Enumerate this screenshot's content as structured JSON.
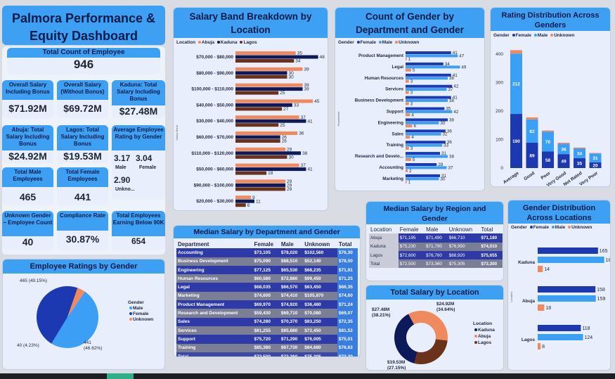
{
  "title": "Palmora Performance & Equity Dashboard",
  "kpis": {
    "total_count": {
      "label": "Total Count of Employee",
      "value": "946"
    },
    "salary_bonus": {
      "label": "Overall Salary Including Bonus",
      "value": "$71.92M"
    },
    "salary_no_bonus": {
      "label": "Overall Salary (Without Bonus)",
      "value": "$69.72M"
    },
    "kaduna_total": {
      "label": "Kaduna: Total Salary Including Bonus",
      "value": "$27.48M"
    },
    "abuja_total": {
      "label": "Abuja: Total Salary Including Bonus",
      "value": "$24.92M"
    },
    "lagos_total": {
      "label": "Lagos: Total Salary Including Bonus",
      "value": "$19.53M"
    },
    "avg_rating": {
      "label": "Average Employee Rating by Gender",
      "male_value": "3.17",
      "female_value": "3.04",
      "male_label": "Male",
      "female_label": "Female",
      "unknown_value": "2.90",
      "unknown_label": "Unkno..."
    },
    "male_emp": {
      "label": "Total Male Employees",
      "value": "465"
    },
    "female_emp": {
      "label": "Total Female Employees",
      "value": "441"
    },
    "unknown_emp": {
      "label": "Unknown Gender – Employee Count",
      "value": "40"
    },
    "compliance": {
      "label": "Compliance Rate",
      "value": "30.87%"
    },
    "below90": {
      "label": "Total Employees Earning Below 90K",
      "value": "654"
    }
  },
  "colors": {
    "abuja": "#ef8a5e",
    "kaduna": "#0d1a5a",
    "lagos": "#6a3218",
    "female": "#1c39b2",
    "male": "#3a9ff5",
    "unknown": "#ef8a5e"
  },
  "salary_band": {
    "title": "Salary Band Breakdown by Location",
    "legend_title": "Location",
    "legend": [
      "Abuja",
      "Kaduna",
      "Lagos"
    ],
    "axis_label": "Salary Band"
  },
  "gender_dept": {
    "title": "Count of Gender by Department and Gender",
    "legend_title": "Gender",
    "legend": [
      "Female",
      "Male",
      "Unknown"
    ],
    "axis_label": "Department"
  },
  "rating_dist": {
    "title": "Rating Distribution Across Genders",
    "legend_title": "Gender",
    "legend": [
      "Female",
      "Male",
      "Unknown"
    ]
  },
  "ratings_gender": {
    "title": "Employee Ratings by Gender",
    "legend_title": "Gender",
    "legend": [
      "Male",
      "Female",
      "Unknown"
    ],
    "labels": [
      "465 (49.15%)",
      "441 (46.62%)",
      "40 (4.23%)"
    ]
  },
  "median_dept": {
    "title": "Median Salary by Department and Gender",
    "headers": [
      "Department",
      "Female",
      "Male",
      "Unknown",
      "Total"
    ],
    "rows": [
      [
        "Accounting",
        "$73,105",
        "$78,020",
        "$102,560",
        "$76,30"
      ],
      [
        "Business Development",
        "$75,090",
        "$88,510",
        "$52,140",
        "$78,50"
      ],
      [
        "Engineering",
        "$77,125",
        "$65,530",
        "$68,235",
        "$71,91"
      ],
      [
        "Human Resources",
        "$60,580",
        "$72,880",
        "$99,450",
        "$71,25"
      ],
      [
        "Legal",
        "$68,035",
        "$66,570",
        "$63,450",
        "$66,35"
      ],
      [
        "Marketing",
        "$74,600",
        "$74,410",
        "$105,870",
        "$74,60"
      ],
      [
        "Product Management",
        "$69,970",
        "$74,920",
        "$36,480",
        "$71,24"
      ],
      [
        "Research and Development",
        "$59,430",
        "$69,710",
        "$70,080",
        "$69,07"
      ],
      [
        "Sales",
        "$74,280",
        "$70,370",
        "$83,250",
        "$72,35"
      ],
      [
        "Services",
        "$81,255",
        "$85,880",
        "$72,450",
        "$81,52"
      ],
      [
        "Support",
        "$75,720",
        "$71,290",
        "$76,005",
        "$75,01"
      ],
      [
        "Training",
        "$85,380",
        "$67,730",
        "$84,680",
        "$76,62"
      ],
      [
        "Total",
        "$72,500",
        "$73,360",
        "$75,305",
        "$73,30"
      ]
    ]
  },
  "median_region": {
    "title": "Median Salary by Region and Gender",
    "headers": [
      "Location",
      "Female",
      "Male",
      "Unknown",
      "Total"
    ],
    "rows": [
      [
        "Abuja",
        "$71,195",
        "$71,490",
        "$66,710",
        "$71,180"
      ],
      [
        "Kaduna",
        "$75,230",
        "$71,790",
        "$76,950",
        "$74,010"
      ],
      [
        "Lagos",
        "$72,600",
        "$76,760",
        "$88,920",
        "$75,655"
      ],
      [
        "Total",
        "$72,500",
        "$73,360",
        "$75,305",
        "$73,300"
      ]
    ]
  },
  "total_location": {
    "title": "Total Salary by Location",
    "legend_title": "Location",
    "legend": [
      "Kaduna",
      "Abuja",
      "Lagos"
    ],
    "label_kaduna_1": "$27.48M",
    "label_kaduna_2": "(38.21%)",
    "label_abuja_1": "$24.92M",
    "label_abuja_2": "(34.64%)",
    "label_lagos_1": "$19.53M",
    "label_lagos_2": "(27.15%)"
  },
  "gender_location": {
    "title": "Gender Distribution Across Locations",
    "legend_title": "Gender",
    "legend": [
      "Female",
      "Male",
      "Unknown"
    ],
    "axis_label": "Location"
  },
  "chart_data": [
    {
      "type": "bar",
      "title": "Salary Band Breakdown by Location",
      "orientation": "horizontal",
      "categories": [
        "$70,000 - $80,000",
        "$80,000 - $90,000",
        "$100,000 - $110,000",
        "$40,000 - $50,000",
        "$30,000 - $40,000",
        "$60,000 - $70,000",
        "$110,000 - $120,000",
        "$50,000 - $60,000",
        "$90,000 - $100,000",
        "$20,000 - $30,000"
      ],
      "series": [
        {
          "name": "Abuja",
          "values": [
            35,
            39,
            39,
            45,
            37,
            36,
            29,
            37,
            29,
            9
          ]
        },
        {
          "name": "Kaduna",
          "values": [
            48,
            30,
            39,
            33,
            41,
            26,
            38,
            41,
            29,
            11
          ]
        },
        {
          "name": "Lagos",
          "values": [
            34,
            30,
            25,
            27,
            25,
            26,
            30,
            18,
            29,
            6
          ]
        }
      ]
    },
    {
      "type": "bar",
      "title": "Count of Gender by Department and Gender",
      "orientation": "horizontal",
      "categories": [
        "Product Management",
        "Legal",
        "Human Resources",
        "Services",
        "Business Development",
        "Support",
        "Engineering",
        "Sales",
        "Training",
        "Research and Develo...",
        "Accounting",
        "Marketing"
      ],
      "series": [
        {
          "name": "Female",
          "values": [
            41,
            34,
            41,
            42,
            41,
            35,
            38,
            36,
            36,
            31,
            28,
            31
          ]
        },
        {
          "name": "Male",
          "values": [
            47,
            49,
            38,
            37,
            38,
            42,
            30,
            32,
            33,
            38,
            37,
            30
          ]
        },
        {
          "name": "Unknown",
          "values": [
            1,
            5,
            3,
            3,
            3,
            4,
            6,
            4,
            3,
            5,
            2,
            1
          ]
        }
      ]
    },
    {
      "type": "bar",
      "title": "Rating Distribution Across Genders",
      "stacked": true,
      "categories": [
        "Average",
        "Good",
        "Poor",
        "Very Good",
        "Not Rated",
        "Very Poor"
      ],
      "series": [
        {
          "name": "Female",
          "values": [
            190,
            89,
            58,
            49,
            35,
            20
          ]
        },
        {
          "name": "Male",
          "values": [
            212,
            82,
            70,
            36,
            34,
            31
          ]
        },
        {
          "name": "Unknown",
          "values": [
            12,
            7,
            4,
            4,
            3,
            2
          ]
        }
      ],
      "yticks": [
        0,
        100,
        200,
        300,
        400
      ],
      "ylim": [
        0,
        400
      ]
    },
    {
      "type": "pie",
      "title": "Employee Ratings by Gender",
      "categories": [
        "Male",
        "Female",
        "Unknown"
      ],
      "values": [
        465,
        441,
        40
      ]
    },
    {
      "type": "pie",
      "title": "Total Salary by Location",
      "categories": [
        "Kaduna",
        "Abuja",
        "Lagos"
      ],
      "values": [
        27.48,
        24.92,
        19.53
      ]
    },
    {
      "type": "bar",
      "title": "Gender Distribution Across Locations",
      "orientation": "horizontal",
      "categories": [
        "Kaduna",
        "Abuja",
        "Lagos"
      ],
      "series": [
        {
          "name": "Female",
          "values": [
            165,
            158,
            118
          ]
        },
        {
          "name": "Male",
          "values": [
            182,
            159,
            124
          ]
        },
        {
          "name": "Unknown",
          "values": [
            14,
            18,
            8
          ]
        }
      ]
    }
  ]
}
